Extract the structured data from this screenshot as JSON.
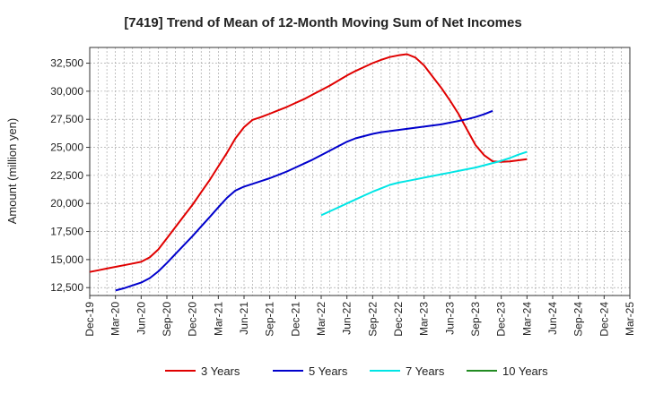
{
  "chart_data": {
    "type": "line",
    "title": "[7419]  Trend of Mean of 12-Month Moving Sum of Net Incomes",
    "xlabel": "",
    "ylabel": "Amount (million yen)",
    "x_tick_labels": [
      "Dec-19",
      "Mar-20",
      "Jun-20",
      "Sep-20",
      "Dec-20",
      "Mar-21",
      "Jun-21",
      "Sep-21",
      "Dec-21",
      "Mar-22",
      "Jun-22",
      "Sep-22",
      "Dec-22",
      "Mar-23",
      "Jun-23",
      "Sep-23",
      "Dec-23",
      "Mar-24",
      "Jun-24",
      "Sep-24",
      "Dec-24",
      "Mar-25"
    ],
    "y_ticks": [
      12500,
      15000,
      17500,
      20000,
      22500,
      25000,
      27500,
      30000,
      32500
    ],
    "y_tick_labels": [
      "12,500",
      "15,000",
      "17,500",
      "20,000",
      "22,500",
      "25,000",
      "27,500",
      "30,000",
      "32,500"
    ],
    "ylim": [
      11800,
      33900
    ],
    "grid": true,
    "legend_position": "bottom",
    "series": [
      {
        "name": "3 Years",
        "color": "#e00000",
        "points": [
          [
            0,
            13900
          ],
          [
            1,
            14050
          ],
          [
            2,
            14200
          ],
          [
            3,
            14350
          ],
          [
            4,
            14500
          ],
          [
            5,
            14650
          ],
          [
            6,
            14800
          ],
          [
            7,
            15200
          ],
          [
            8,
            15900
          ],
          [
            9,
            16900
          ],
          [
            10,
            17900
          ],
          [
            11,
            18900
          ],
          [
            12,
            19900
          ],
          [
            13,
            21000
          ],
          [
            14,
            22100
          ],
          [
            15,
            23300
          ],
          [
            16,
            24500
          ],
          [
            17,
            25800
          ],
          [
            18,
            26800
          ],
          [
            19,
            27450
          ],
          [
            20,
            27700
          ],
          [
            21,
            28000
          ],
          [
            22,
            28300
          ],
          [
            23,
            28600
          ],
          [
            24,
            28950
          ],
          [
            25,
            29300
          ],
          [
            26,
            29700
          ],
          [
            27,
            30100
          ],
          [
            28,
            30500
          ],
          [
            29,
            30950
          ],
          [
            30,
            31400
          ],
          [
            31,
            31800
          ],
          [
            32,
            32150
          ],
          [
            33,
            32500
          ],
          [
            34,
            32800
          ],
          [
            35,
            33050
          ],
          [
            36,
            33200
          ],
          [
            37,
            33300
          ],
          [
            38,
            33000
          ],
          [
            39,
            32300
          ],
          [
            40,
            31300
          ],
          [
            41,
            30300
          ],
          [
            42,
            29200
          ],
          [
            43,
            28000
          ],
          [
            44,
            26600
          ],
          [
            45,
            25200
          ],
          [
            46,
            24300
          ],
          [
            47,
            23750
          ],
          [
            48,
            23700
          ],
          [
            49,
            23750
          ],
          [
            50,
            23850
          ],
          [
            51,
            23950
          ]
        ]
      },
      {
        "name": "5 Years",
        "color": "#0000cc",
        "points": [
          [
            3,
            12250
          ],
          [
            4,
            12450
          ],
          [
            5,
            12700
          ],
          [
            6,
            12950
          ],
          [
            7,
            13350
          ],
          [
            8,
            13950
          ],
          [
            9,
            14700
          ],
          [
            10,
            15500
          ],
          [
            11,
            16300
          ],
          [
            12,
            17100
          ],
          [
            13,
            17950
          ],
          [
            14,
            18800
          ],
          [
            15,
            19650
          ],
          [
            16,
            20500
          ],
          [
            17,
            21150
          ],
          [
            18,
            21500
          ],
          [
            19,
            21750
          ],
          [
            20,
            22000
          ],
          [
            21,
            22250
          ],
          [
            22,
            22550
          ],
          [
            23,
            22850
          ],
          [
            24,
            23200
          ],
          [
            25,
            23550
          ],
          [
            26,
            23900
          ],
          [
            27,
            24300
          ],
          [
            28,
            24700
          ],
          [
            29,
            25100
          ],
          [
            30,
            25500
          ],
          [
            31,
            25800
          ],
          [
            32,
            26000
          ],
          [
            33,
            26200
          ],
          [
            34,
            26350
          ],
          [
            35,
            26450
          ],
          [
            36,
            26550
          ],
          [
            37,
            26650
          ],
          [
            38,
            26750
          ],
          [
            39,
            26850
          ],
          [
            40,
            26950
          ],
          [
            41,
            27050
          ],
          [
            42,
            27200
          ],
          [
            43,
            27350
          ],
          [
            44,
            27500
          ],
          [
            45,
            27700
          ],
          [
            46,
            27950
          ],
          [
            47,
            28250
          ]
        ]
      },
      {
        "name": "7 Years",
        "color": "#00e5e5",
        "points": [
          [
            27,
            18950
          ],
          [
            28,
            19300
          ],
          [
            29,
            19650
          ],
          [
            30,
            20000
          ],
          [
            31,
            20350
          ],
          [
            32,
            20700
          ],
          [
            33,
            21050
          ],
          [
            34,
            21350
          ],
          [
            35,
            21650
          ],
          [
            36,
            21850
          ],
          [
            37,
            22000
          ],
          [
            38,
            22150
          ],
          [
            39,
            22300
          ],
          [
            40,
            22450
          ],
          [
            41,
            22600
          ],
          [
            42,
            22750
          ],
          [
            43,
            22900
          ],
          [
            44,
            23050
          ],
          [
            45,
            23200
          ],
          [
            46,
            23400
          ],
          [
            47,
            23600
          ],
          [
            48,
            23800
          ],
          [
            49,
            24050
          ],
          [
            50,
            24350
          ],
          [
            51,
            24600
          ]
        ]
      },
      {
        "name": "10 Years",
        "color": "#228b22",
        "points": []
      }
    ]
  }
}
